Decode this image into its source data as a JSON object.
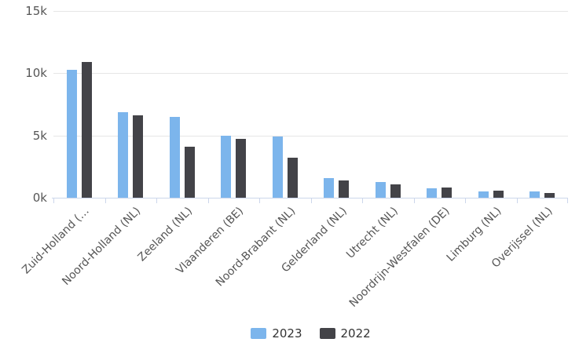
{
  "chart_data": {
    "type": "bar",
    "title": "",
    "xlabel": "",
    "ylabel": "",
    "categories": [
      "Zuid-Holland (…",
      "Noord-Holland (NL)",
      "Zeeland (NL)",
      "Vlaanderen (BE)",
      "Noord-Brabant (NL)",
      "Gelderland (NL)",
      "Utrecht (NL)",
      "Noordrijn-Westfalen (DE)",
      "Limburg (NL)",
      "Overijssel (NL)"
    ],
    "series": [
      {
        "name": "2023",
        "color": "#7cb5ec",
        "values": [
          10250,
          6900,
          6500,
          5000,
          4900,
          1600,
          1250,
          750,
          500,
          500
        ]
      },
      {
        "name": "2022",
        "color": "#434348",
        "values": [
          10900,
          6600,
          4100,
          4700,
          3200,
          1400,
          1050,
          800,
          550,
          400
        ]
      }
    ],
    "ylim": [
      0,
      15000
    ],
    "yticks": [
      {
        "value": 0,
        "label": "0k"
      },
      {
        "value": 5000,
        "label": "5k"
      },
      {
        "value": 10000,
        "label": "10k"
      },
      {
        "value": 15000,
        "label": "15k"
      }
    ],
    "grid": true,
    "legend_position": "bottom-center"
  },
  "colors": {
    "background": "#ffffff",
    "gridline": "#e6e6e6",
    "axis_line": "#ccd6eb",
    "tick": "#ccd6eb",
    "axis_label_text": "#555555",
    "legend_text": "#333333",
    "series_2023": "#7cb5ec",
    "series_2022": "#434348"
  }
}
